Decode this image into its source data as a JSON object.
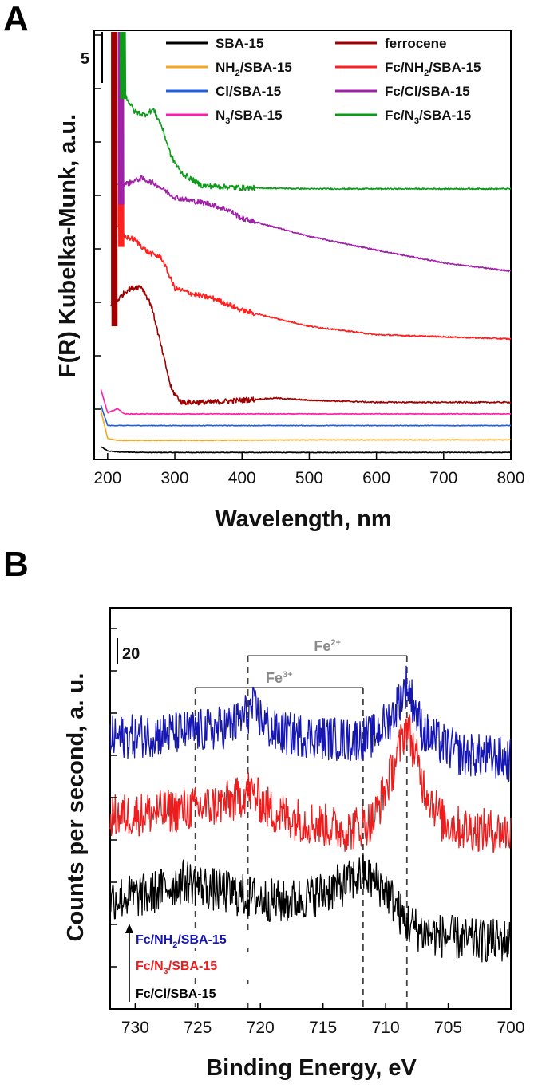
{
  "chart_data": [
    {
      "panel": "A",
      "type": "line",
      "xlabel": "Wavelength, nm",
      "ylabel": "F(R) Kubelka-Munk, a.u.",
      "xlim": [
        180,
        800
      ],
      "xticks": [
        200,
        300,
        400,
        500,
        600,
        700,
        800
      ],
      "ylim": [
        0,
        40
      ],
      "y_tick_labels_shown": false,
      "scale_bar_label": "5",
      "legend_placement": "top",
      "series": [
        {
          "name": "SBA-15",
          "name_sub": "",
          "name_post": "",
          "color": "#000000",
          "x": [
            190,
            200,
            215,
            260,
            350,
            500,
            650,
            800
          ],
          "y": [
            0.6,
            0.2,
            0.1,
            0.05,
            0.05,
            0.05,
            0.05,
            0.05
          ]
        },
        {
          "name": "NH",
          "name_sub": "2",
          "name_post": "/SBA-15",
          "color": "#f5a623",
          "x": [
            190,
            200,
            215,
            260,
            350,
            500,
            650,
            800
          ],
          "y": [
            4.0,
            1.4,
            1.2,
            1.2,
            1.2,
            1.25,
            1.25,
            1.25
          ]
        },
        {
          "name": "Cl/SBA-15",
          "name_sub": "",
          "name_post": "",
          "color": "#1f5fe0",
          "x": [
            190,
            200,
            215,
            260,
            350,
            500,
            650,
            800
          ],
          "y": [
            4.5,
            2.6,
            2.6,
            2.6,
            2.6,
            2.6,
            2.6,
            2.6
          ]
        },
        {
          "name": "N",
          "name_sub": "3",
          "name_post": "/SBA-15",
          "color": "#ff1fa8",
          "x": [
            190,
            200,
            215,
            225,
            260,
            350,
            500,
            650,
            800
          ],
          "y": [
            6.0,
            3.8,
            4.2,
            3.7,
            3.7,
            3.7,
            3.7,
            3.7,
            3.7
          ]
        },
        {
          "name": "ferrocene",
          "name_sub": "",
          "name_post": "",
          "color": "#a00000",
          "x": [
            205,
            215,
            230,
            250,
            265,
            280,
            295,
            310,
            350,
            400,
            450,
            500,
            600,
            700,
            800
          ],
          "y": [
            14,
            14.5,
            15.5,
            15.8,
            14.0,
            10.0,
            6.0,
            4.8,
            4.8,
            5.0,
            5.2,
            5.0,
            4.8,
            4.8,
            4.8
          ]
        },
        {
          "name": "Fc/NH",
          "name_sub": "2",
          "name_post": "/SBA-15",
          "color": "#ff2020",
          "x": [
            215,
            225,
            240,
            260,
            280,
            300,
            330,
            360,
            400,
            500,
            600,
            700,
            800
          ],
          "y": [
            21.5,
            20.5,
            20.2,
            19.0,
            18.5,
            15.6,
            15.0,
            14.6,
            13.5,
            12.0,
            11.2,
            11.0,
            10.8
          ]
        },
        {
          "name": "Fc/Cl/SBA-15",
          "name_sub": "",
          "name_post": "",
          "color": "#a020a8",
          "x": [
            215,
            230,
            250,
            270,
            300,
            330,
            350,
            380,
            400,
            500,
            600,
            700,
            800
          ],
          "y": [
            25.5,
            25.5,
            26.0,
            25.5,
            24.2,
            23.8,
            23.6,
            23.0,
            22.2,
            20.5,
            19.2,
            18.0,
            17.2
          ]
        },
        {
          "name": "Fc/N",
          "name_sub": "3",
          "name_post": "/SBA-15",
          "color": "#0e9a1a",
          "x": [
            218,
            225,
            240,
            255,
            268,
            280,
            295,
            310,
            340,
            400,
            500,
            600,
            700,
            800
          ],
          "y": [
            35.5,
            34.0,
            32.3,
            32.0,
            32.5,
            31.0,
            28.0,
            26.5,
            25.3,
            25.1,
            25.0,
            25.0,
            25.0,
            25.0
          ]
        }
      ]
    },
    {
      "panel": "B",
      "type": "line",
      "xlabel": "Binding Energy, eV",
      "ylabel": "Counts per second, a. u.",
      "xlim": [
        732,
        700
      ],
      "xticks": [
        730,
        725,
        720,
        715,
        710,
        705,
        700
      ],
      "ylim": [
        0,
        200
      ],
      "y_tick_labels_shown": false,
      "scale_bar_label": "20",
      "annotations": [
        {
          "label": "Fe",
          "sup": "2+",
          "x_start": 721,
          "x_end": 708.3
        },
        {
          "label": "Fe",
          "sup": "3+",
          "x_start": 725.2,
          "x_end": 711.8
        }
      ],
      "dashed_lines_x": [
        725.2,
        721,
        711.8,
        708.3
      ],
      "series": [
        {
          "name": "Fc/NH",
          "name_sub": "2",
          "name_post": "/SBA-15",
          "color": "#1616b4",
          "x": [
            732,
            728,
            724,
            722,
            720.6,
            719,
            716,
            713,
            711,
            709.5,
            708.3,
            707,
            705.5,
            704,
            702,
            700
          ],
          "y": [
            135,
            137,
            139,
            142,
            150,
            138,
            136,
            134,
            136,
            146,
            162,
            138,
            132,
            127,
            126,
            124
          ]
        },
        {
          "name": "Fc/N",
          "name_sub": "3",
          "name_post": "/SBA-15",
          "color": "#ee1c1c",
          "x": [
            732,
            728,
            724,
            722,
            721,
            719,
            716,
            713,
            711,
            709.5,
            708.3,
            707,
            705.5,
            704,
            702,
            700
          ],
          "y": [
            96,
            98,
            101,
            104,
            109,
            98,
            93,
            89,
            94,
            118,
            142,
            112,
            94,
            90,
            89,
            88
          ]
        },
        {
          "name": "Fc/Cl/SBA-15",
          "name_sub": "",
          "name_post": "",
          "color": "#000000",
          "x": [
            732,
            729,
            726,
            724,
            721,
            718,
            715,
            713,
            711.8,
            710,
            708.5,
            707,
            705,
            703,
            700
          ],
          "y": [
            55,
            57,
            64,
            60,
            56,
            53,
            58,
            63,
            67,
            60,
            44,
            38,
            36,
            34,
            34
          ]
        }
      ]
    }
  ]
}
